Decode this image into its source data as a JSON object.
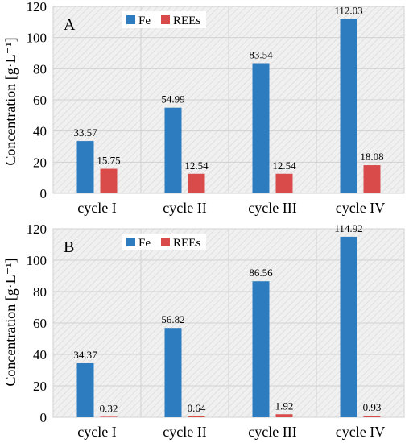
{
  "colors": {
    "fe": "#2c7cbf",
    "rees": "#d94b4b",
    "plot_bg": "#f0f0f0",
    "grid": "#d2d2d2",
    "hatch": "#c4c4c4"
  },
  "chart_data": [
    {
      "type": "bar",
      "panel_label": "A",
      "ylabel": "Concentration [g·L⁻¹]",
      "ylim": [
        0,
        120
      ],
      "yticks": [
        0,
        20,
        40,
        60,
        80,
        100,
        120
      ],
      "categories": [
        "cycle I",
        "cycle II",
        "cycle III",
        "cycle IV"
      ],
      "grid": true,
      "legend_position": "top-center",
      "series": [
        {
          "name": "Fe",
          "values": [
            33.57,
            54.99,
            83.54,
            112.03
          ],
          "labels": [
            "33.57",
            "54.99",
            "83.54",
            "112.03"
          ]
        },
        {
          "name": "REEs",
          "values": [
            15.75,
            12.54,
            12.54,
            18.08
          ],
          "labels": [
            "15.75",
            "12.54",
            "12.54",
            "18.08"
          ]
        }
      ]
    },
    {
      "type": "bar",
      "panel_label": "B",
      "ylabel": "Concentration [g·L⁻¹]",
      "ylim": [
        0,
        120
      ],
      "yticks": [
        0,
        20,
        40,
        60,
        80,
        100,
        120
      ],
      "categories": [
        "cycle I",
        "cycle II",
        "cycle III",
        "cycle IV"
      ],
      "grid": true,
      "legend_position": "top-center",
      "series": [
        {
          "name": "Fe",
          "values": [
            34.37,
            56.82,
            86.56,
            114.92
          ],
          "labels": [
            "34.37",
            "56.82",
            "86.56",
            "114.92"
          ]
        },
        {
          "name": "REEs",
          "values": [
            0.32,
            0.64,
            1.92,
            0.93
          ],
          "labels": [
            "0.32",
            "0.64",
            "1.92",
            "0.93"
          ]
        }
      ]
    }
  ]
}
